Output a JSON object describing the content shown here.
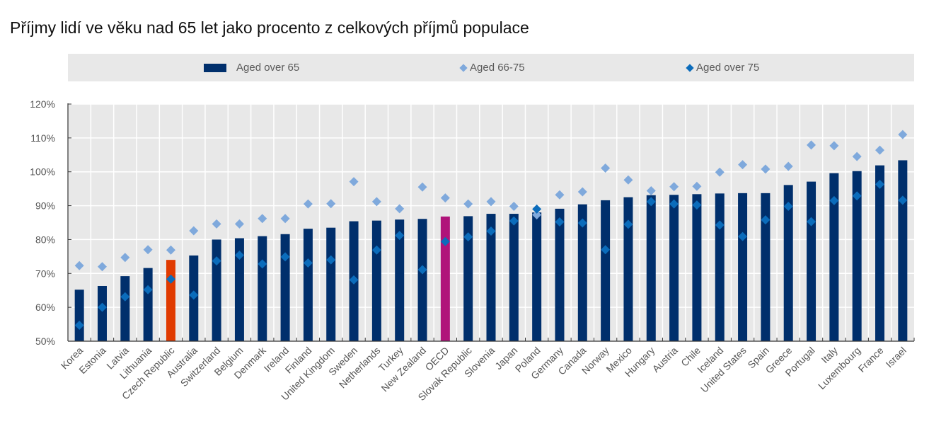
{
  "title": "Příjmy lidí ve věku nad 65 let jako procento z celkových příjmů populace",
  "legend": [
    {
      "label": "Aged over 65",
      "marker": "bar",
      "color": "#002f6c"
    },
    {
      "label": "Aged 66-75",
      "marker": "diamond",
      "color": "#7fa9dc"
    },
    {
      "label": "Aged over 75",
      "marker": "diamond",
      "color": "#0b6cbb"
    }
  ],
  "chart_data": {
    "type": "bar",
    "title": "Příjmy lidí ve věku nad 65 let jako procento z celkových příjmů populace",
    "xlabel": "",
    "ylabel": "",
    "ylim": [
      50,
      120
    ],
    "yticks": [
      50,
      60,
      70,
      80,
      90,
      100,
      110,
      120
    ],
    "ytick_labels": [
      "50%",
      "60%",
      "70%",
      "80%",
      "90%",
      "100%",
      "110%",
      "120%"
    ],
    "grid": true,
    "legend_position": "top",
    "categories": [
      "Korea",
      "Estonia",
      "Latvia",
      "Lithuania",
      "Czech Republic",
      "Australia",
      "Switzerland",
      "Belgium",
      "Denmark",
      "Ireland",
      "Finland",
      "United Kingdom",
      "Sweden",
      "Netherlands",
      "Turkey",
      "New Zealand",
      "OECD",
      "Slovak Republic",
      "Slovenia",
      "Japan",
      "Poland",
      "Germany",
      "Canada",
      "Norway",
      "Mexico",
      "Hungary",
      "Austria",
      "Chile",
      "Iceland",
      "United States",
      "Spain",
      "Greece",
      "Portugal",
      "Italy",
      "Luxembourg",
      "France",
      "Israel"
    ],
    "highlight": {
      "Czech Republic": "#e03a00",
      "OECD": "#b0147a"
    },
    "series": [
      {
        "name": "Aged over 65",
        "type": "bar",
        "color": "#002f6c",
        "values": [
          65.2,
          66.3,
          69.2,
          71.6,
          74.0,
          75.3,
          80.0,
          80.4,
          81.0,
          81.6,
          83.2,
          83.5,
          85.4,
          85.6,
          85.9,
          86.1,
          86.8,
          86.9,
          87.6,
          87.6,
          88.0,
          89.1,
          90.4,
          91.6,
          92.5,
          93.1,
          93.2,
          93.4,
          93.6,
          93.7,
          93.7,
          96.1,
          97.1,
          99.6,
          100.2,
          101.9,
          103.4
        ]
      },
      {
        "name": "Aged 66-75",
        "type": "scatter",
        "marker": "diamond",
        "color": "#7fa9dc",
        "values": [
          72.3,
          72.0,
          74.7,
          77.0,
          76.9,
          82.6,
          84.6,
          84.6,
          86.2,
          86.2,
          90.5,
          90.6,
          97.1,
          91.2,
          89.1,
          95.5,
          92.3,
          90.5,
          91.2,
          89.8,
          87.3,
          93.2,
          94.1,
          101.1,
          97.6,
          94.4,
          95.6,
          95.7,
          99.9,
          102.1,
          100.8,
          101.6,
          107.9,
          107.7,
          104.5,
          106.4,
          111.0
        ]
      },
      {
        "name": "Aged over 75",
        "type": "scatter",
        "marker": "diamond",
        "color": "#0b6cbb",
        "values": [
          54.7,
          60.0,
          63.1,
          65.2,
          68.3,
          63.6,
          73.7,
          75.4,
          72.8,
          74.9,
          73.1,
          74.0,
          68.1,
          76.9,
          81.2,
          71.1,
          79.4,
          80.8,
          82.5,
          85.5,
          89.0,
          85.2,
          84.9,
          77.0,
          84.5,
          91.2,
          90.5,
          90.2,
          84.3,
          80.9,
          85.8,
          89.8,
          85.3,
          91.5,
          92.9,
          96.3,
          91.6
        ]
      }
    ]
  }
}
